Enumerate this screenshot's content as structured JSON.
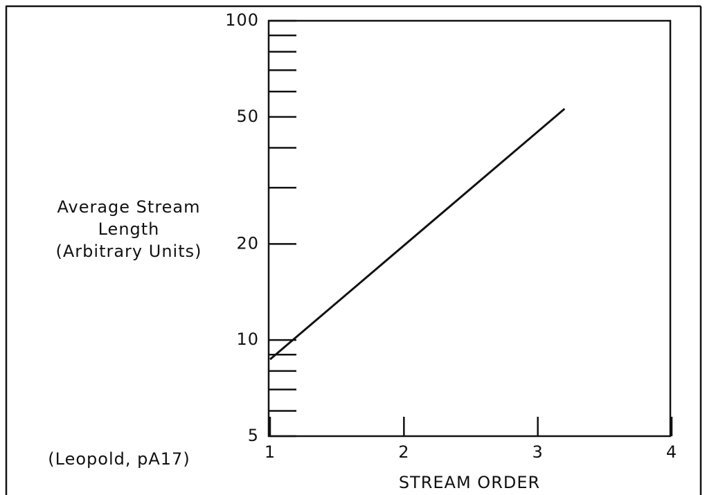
{
  "chart_data": {
    "type": "line",
    "ylabel": [
      "Average Stream",
      "Length",
      "(Arbitrary Units)"
    ],
    "xlabel": "STREAM ORDER",
    "annotation": "(Leopold, pA17)",
    "x": [
      1,
      3.2
    ],
    "series": [
      {
        "color": "#111111",
        "values": [
          8.7,
          53
        ]
      }
    ],
    "xlim": [
      1,
      4
    ],
    "xticks": [
      1,
      2,
      3,
      4
    ],
    "ylim": [
      5,
      100
    ],
    "yticks": [
      5,
      10,
      20,
      50,
      100
    ],
    "minor_yticks": [
      6,
      7,
      8,
      9,
      30,
      40,
      60,
      70,
      80,
      90
    ],
    "ylog": true
  }
}
